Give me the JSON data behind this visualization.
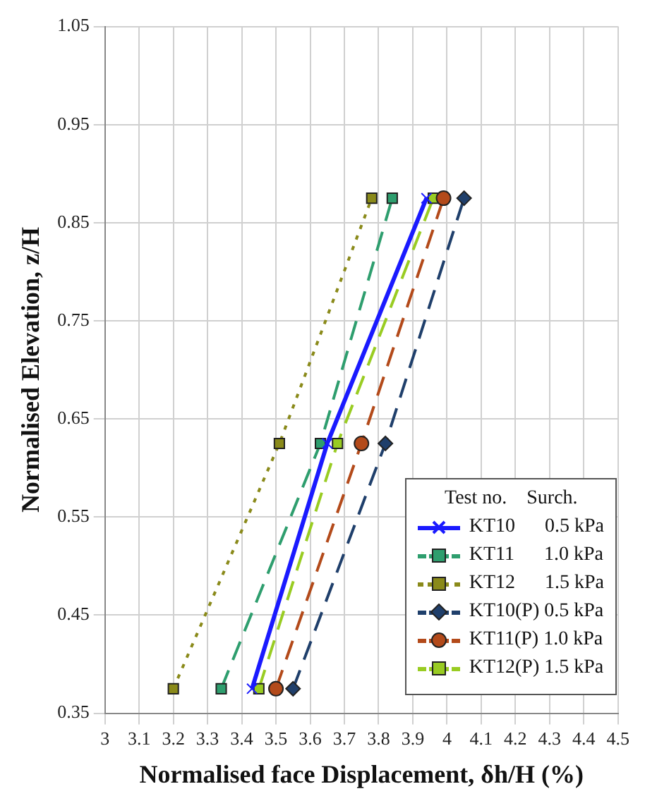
{
  "chart_data": {
    "type": "line",
    "xlabel": "Normalised face Displacement, δh/H (%)",
    "ylabel": "Normalised Elevation, z/H",
    "legend_title": "Test no.    Surch.",
    "legend": "bottom right",
    "grid": true,
    "xlim": [
      3,
      4.5
    ],
    "xticks": [
      3,
      3.1,
      3.2,
      3.3,
      3.4,
      3.5,
      3.6,
      3.7,
      3.8,
      3.9,
      4,
      4.1,
      4.2,
      4.3,
      4.4,
      4.5
    ],
    "ylim": [
      0.35,
      1.05
    ],
    "yticks": [
      0.35,
      0.45,
      0.55,
      0.65,
      0.75,
      0.85,
      0.95,
      1.05
    ],
    "series": [
      {
        "name": "KT10      0.5 kPa",
        "color": "#1a1aff",
        "marker": "cross",
        "line_style": "solid",
        "x": [
          3.43,
          3.65,
          3.94
        ],
        "values": [
          0.375,
          0.625,
          0.875
        ]
      },
      {
        "name": "KT11      1.0 kPa",
        "color": "#2e9e6e",
        "marker": "square",
        "line_style": "dashed",
        "x": [
          3.34,
          3.63,
          3.84
        ],
        "values": [
          0.375,
          0.625,
          0.875
        ]
      },
      {
        "name": "KT12      1.5 kPa",
        "color": "#8a8a1a",
        "marker": "square",
        "line_style": "dotted",
        "x": [
          3.2,
          3.51,
          3.78
        ],
        "values": [
          0.375,
          0.625,
          0.875
        ]
      },
      {
        "name": "KT10(P) 0.5 kPa",
        "color": "#1f3f6b",
        "marker": "diamond",
        "line_style": "dashed",
        "x": [
          3.55,
          3.82,
          4.05
        ],
        "values": [
          0.375,
          0.625,
          0.875
        ]
      },
      {
        "name": "KT11(P) 1.0 kPa",
        "color": "#b34a1a",
        "marker": "circle",
        "line_style": "dashed",
        "x": [
          3.5,
          3.75,
          3.99
        ],
        "values": [
          0.375,
          0.625,
          0.875
        ]
      },
      {
        "name": "KT12(P) 1.5 kPa",
        "color": "#99cc22",
        "marker": "square",
        "line_style": "dashed",
        "x": [
          3.45,
          3.68,
          3.96
        ],
        "values": [
          0.375,
          0.625,
          0.875
        ]
      }
    ]
  }
}
